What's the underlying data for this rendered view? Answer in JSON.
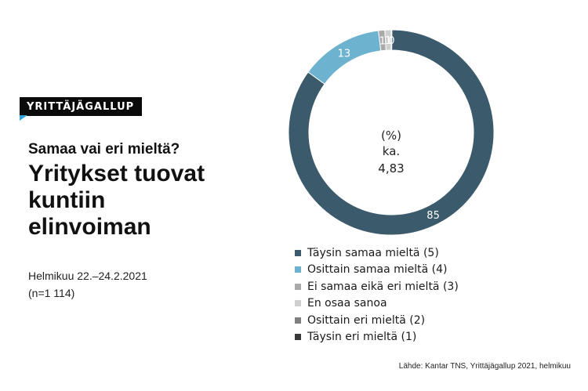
{
  "header": {
    "badge": "YRITTÄJÄGALLUP",
    "subtitle": "Samaa vai eri mieltä?",
    "title": "Yritykset tuovat kuntiin elinvoiman",
    "date": "Helmikuu 22.–24.2.2021",
    "sample": "(n=1 114)"
  },
  "center": {
    "unit": "(%)",
    "avg_label": "ka.",
    "avg_value": "4,83"
  },
  "source": "Lähde: Kantar TNS, Yrittäjägallup 2021, helmikuu",
  "chart_data": {
    "type": "pie",
    "variant": "donut",
    "categories": [
      "Täysin samaa mieltä (5)",
      "Osittain samaa mieltä (4)",
      "Ei samaa eikä eri mieltä (3)",
      "En osaa sanoa",
      "Osittain eri mieltä (2)",
      "Täysin eri mieltä (1)"
    ],
    "values": [
      85,
      13,
      1,
      1,
      0,
      0
    ],
    "value_labels": [
      "85",
      "13",
      "1",
      "1",
      "0",
      ""
    ],
    "colors": [
      "#3b5a6b",
      "#6db3d0",
      "#a9a9a9",
      "#cfcfcf",
      "#7f7f7f",
      "#3a3a3a"
    ],
    "legend_position": "bottom"
  }
}
